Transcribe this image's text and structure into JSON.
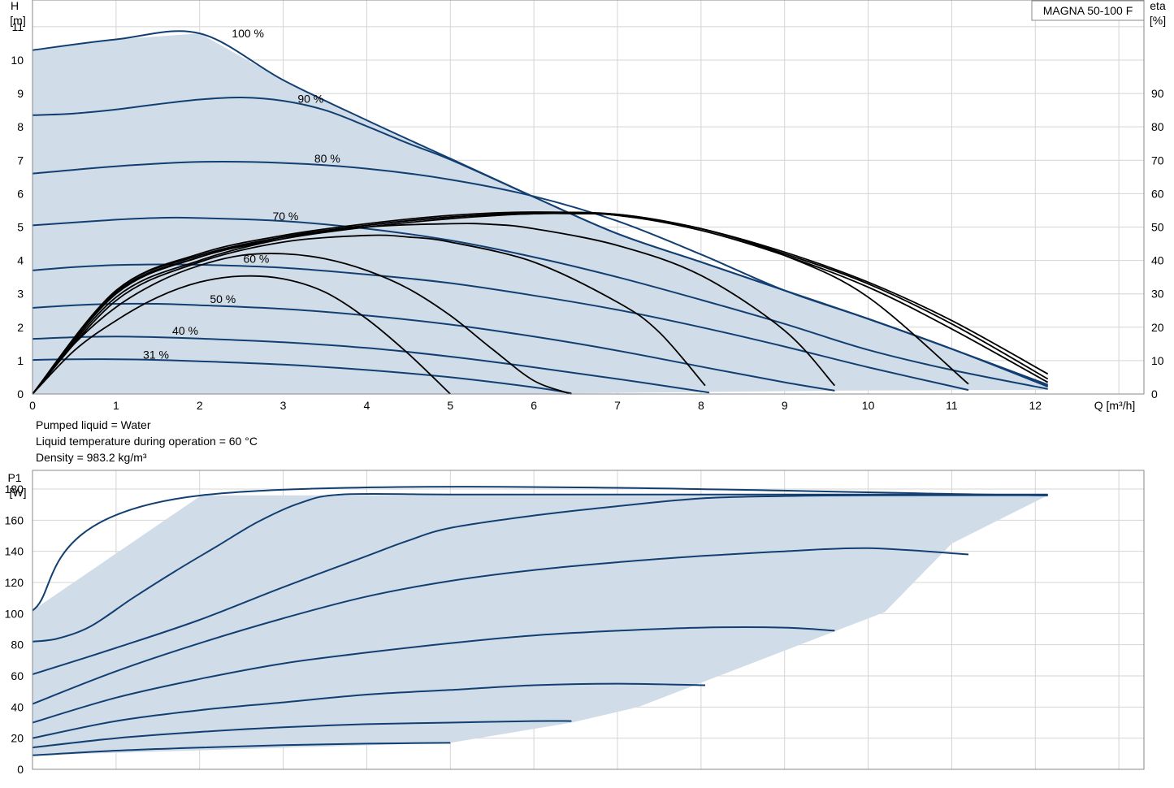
{
  "chart_data": [
    {
      "type": "line",
      "name": "head",
      "legend_label": "MAGNA 50-100 F",
      "x_label_line1": "Q [m³/h]",
      "y_label_line1": "H",
      "y_label_line2": "[m]",
      "y2_label_line1": "eta",
      "y2_label_line2": "[%]",
      "xlim": [
        0,
        13.3
      ],
      "ylim": [
        0,
        11.8
      ],
      "y2lim": [
        0,
        118
      ],
      "x_ticks": [
        0,
        1,
        2,
        3,
        4,
        5,
        6,
        7,
        8,
        9,
        10,
        11,
        12
      ],
      "y_ticks": [
        0,
        1,
        2,
        3,
        4,
        5,
        6,
        7,
        8,
        9,
        10,
        11
      ],
      "y2_ticks": [
        0,
        10,
        20,
        30,
        40,
        50,
        60,
        70,
        80,
        90
      ],
      "grid": true,
      "area_color": "#d0dce8",
      "curve_color": "#123f72",
      "eta_color": "#000000",
      "area": [
        [
          0,
          10.3
        ],
        [
          1,
          10.62
        ],
        [
          2,
          10.8
        ],
        [
          3,
          9.4
        ],
        [
          4,
          8.2
        ],
        [
          5,
          7.05
        ],
        [
          6,
          5.9
        ],
        [
          7,
          4.8
        ],
        [
          8,
          3.95
        ],
        [
          9,
          3.1
        ],
        [
          10,
          2.25
        ],
        [
          11,
          1.35
        ],
        [
          12.15,
          0.28
        ],
        [
          12.15,
          0.12
        ],
        [
          11.2,
          0.12
        ],
        [
          9.6,
          0.1
        ],
        [
          8.05,
          0.06
        ],
        [
          6.45,
          0.02
        ],
        [
          4.95,
          0
        ],
        [
          0,
          0
        ]
      ],
      "series": [
        {
          "name": "100 %",
          "label_x": 2.15,
          "label_y": 10.8,
          "x": [
            0,
            1,
            2,
            3,
            4,
            5,
            6,
            7,
            8,
            9,
            10,
            11,
            12.15
          ],
          "values": [
            10.3,
            10.62,
            10.8,
            9.4,
            8.2,
            7.05,
            5.9,
            4.8,
            3.95,
            3.1,
            2.25,
            1.35,
            0.28
          ]
        },
        {
          "name": "90 %",
          "label_x": 2.9,
          "label_y": 8.85,
          "x": [
            0,
            0.5,
            1,
            1.5,
            2,
            2.5,
            3,
            3.5,
            4,
            4.5,
            5,
            6,
            7,
            8,
            9,
            10,
            11,
            12.15
          ],
          "values": [
            8.35,
            8.4,
            8.52,
            8.68,
            8.82,
            8.88,
            8.78,
            8.5,
            8.02,
            7.5,
            7.02,
            5.9,
            4.8,
            3.95,
            3.1,
            2.25,
            1.35,
            0.25
          ]
        },
        {
          "name": "80 %",
          "label_x": 3.1,
          "label_y": 7.05,
          "x": [
            0,
            1,
            2,
            3,
            4,
            5,
            6,
            7,
            8,
            9,
            10,
            11,
            12.15
          ],
          "values": [
            6.6,
            6.82,
            6.95,
            6.92,
            6.75,
            6.42,
            5.92,
            5.18,
            4.18,
            3.1,
            2.25,
            1.35,
            0.22
          ]
        },
        {
          "name": "70 %",
          "label_x": 2.6,
          "label_y": 5.33,
          "x": [
            0,
            1,
            1.6,
            2,
            3,
            4,
            5,
            6,
            7,
            8,
            9,
            10,
            11,
            12.15
          ],
          "values": [
            5.05,
            5.22,
            5.28,
            5.27,
            5.18,
            4.95,
            4.6,
            4.1,
            3.5,
            2.82,
            2.1,
            1.32,
            0.72,
            0.15
          ]
        },
        {
          "name": "60 %",
          "label_x": 2.25,
          "label_y": 4.05,
          "x": [
            0,
            0.5,
            1,
            1.5,
            2,
            3,
            4,
            5,
            6,
            7,
            8,
            9,
            10,
            11.2
          ],
          "values": [
            3.7,
            3.8,
            3.86,
            3.88,
            3.87,
            3.78,
            3.58,
            3.32,
            2.95,
            2.52,
            2.0,
            1.42,
            0.8,
            0.12
          ]
        },
        {
          "name": "50 %",
          "label_x": 1.85,
          "label_y": 2.85,
          "x": [
            0,
            0.5,
            1,
            1.5,
            2,
            3,
            4,
            5,
            6,
            7,
            8,
            9,
            9.6
          ],
          "values": [
            2.58,
            2.66,
            2.7,
            2.7,
            2.66,
            2.55,
            2.35,
            2.08,
            1.72,
            1.3,
            0.82,
            0.35,
            0.1
          ]
        },
        {
          "name": "40 %",
          "label_x": 1.4,
          "label_y": 1.9,
          "x": [
            0,
            0.5,
            1,
            1.5,
            2,
            3,
            4,
            5,
            6,
            7,
            8,
            8.05
          ],
          "values": [
            1.65,
            1.7,
            1.72,
            1.7,
            1.66,
            1.55,
            1.38,
            1.12,
            0.8,
            0.45,
            0.08,
            0.06
          ]
        },
        {
          "name": "31 %",
          "label_x": 1.05,
          "label_y": 1.18,
          "x": [
            0,
            0.5,
            1,
            1.5,
            2,
            3,
            4,
            5,
            6,
            6.45
          ],
          "values": [
            1.02,
            1.04,
            1.04,
            1.02,
            0.98,
            0.88,
            0.72,
            0.5,
            0.2,
            0.02
          ]
        }
      ],
      "eta_series": [
        {
          "x": [
            0,
            0.5,
            1,
            1.5,
            2,
            2.5,
            3,
            3.5,
            4,
            4.5,
            5
          ],
          "values": [
            0,
            13,
            22,
            29,
            33.5,
            35.3,
            34.5,
            30.5,
            22.5,
            12,
            0
          ]
        },
        {
          "x": [
            0,
            0.5,
            1,
            1.5,
            2,
            2.5,
            3,
            3.5,
            4,
            4.5,
            5,
            5.5,
            6,
            6.45
          ],
          "values": [
            0,
            15,
            26,
            33.5,
            38.5,
            41.5,
            42,
            40.5,
            37,
            31.5,
            23.5,
            13.5,
            4,
            0
          ]
        },
        {
          "x": [
            0,
            1,
            2,
            3,
            4,
            4.5,
            5,
            6,
            7,
            7.5,
            8.05
          ],
          "values": [
            0,
            28,
            39.5,
            45.5,
            47.5,
            47,
            45.5,
            39.5,
            27.5,
            18.5,
            2.5
          ]
        },
        {
          "x": [
            0,
            1,
            2,
            3,
            4,
            5,
            5.5,
            6,
            7,
            8,
            9,
            9.6
          ],
          "values": [
            0,
            29,
            40,
            46.5,
            50,
            51,
            50.8,
            49.5,
            44.5,
            35.5,
            19,
            2.5
          ]
        },
        {
          "x": [
            0,
            1,
            2,
            3,
            4,
            5,
            6,
            6.5,
            7,
            8,
            9,
            10,
            11.2
          ],
          "values": [
            0,
            30,
            41,
            47,
            50.5,
            53,
            54,
            54,
            53.5,
            49.5,
            41.5,
            29,
            3
          ]
        },
        {
          "x": [
            0,
            1,
            2,
            3,
            4,
            5,
            6,
            7,
            8,
            9,
            10,
            11,
            12.15
          ],
          "values": [
            0,
            31,
            42,
            47.5,
            51,
            53.5,
            54.5,
            53.5,
            49,
            41.5,
            32,
            19.5,
            3.5
          ]
        },
        {
          "x": [
            0,
            1,
            2,
            3,
            4,
            5,
            6,
            7,
            8,
            9,
            10,
            11,
            12.15
          ],
          "values": [
            0,
            31,
            41.5,
            47,
            50.5,
            53,
            54.3,
            53.8,
            49.5,
            42,
            33,
            21,
            4.5
          ]
        },
        {
          "x": [
            0,
            1,
            2,
            3,
            4,
            5,
            6,
            7,
            8,
            9,
            10,
            11,
            12.15
          ],
          "values": [
            0,
            30.5,
            41,
            46.5,
            50,
            52.5,
            54,
            53.8,
            49.5,
            42.5,
            33.5,
            22,
            6
          ]
        }
      ]
    },
    {
      "type": "line",
      "name": "power",
      "y_label_line1": "P1",
      "y_label_line2": "[W]",
      "xlim": [
        0,
        13.3
      ],
      "ylim": [
        0,
        192
      ],
      "x_ticks": [
        0,
        1,
        2,
        3,
        4,
        5,
        6,
        7,
        8,
        9,
        10,
        11,
        12,
        13
      ],
      "y_ticks": [
        0,
        20,
        40,
        60,
        80,
        100,
        120,
        140,
        160,
        180
      ],
      "grid": true,
      "area_color": "#d0dce8",
      "curve_color": "#123f72",
      "area": [
        [
          0,
          102
        ],
        [
          2.02,
          176
        ],
        [
          12.15,
          176
        ],
        [
          11,
          145
        ],
        [
          10.2,
          101
        ],
        [
          8.6,
          68
        ],
        [
          7.25,
          40
        ],
        [
          6.45,
          30
        ],
        [
          5,
          17
        ],
        [
          0,
          9
        ],
        [
          0,
          102
        ]
      ],
      "series": [
        {
          "name": "100 %",
          "x": [
            0,
            2.02,
            12.15
          ],
          "values": [
            102,
            176,
            176
          ]
        },
        {
          "name": "90 %",
          "x": [
            0,
            0.3,
            0.7,
            1.2,
            1.7,
            2.2,
            2.7,
            3.2,
            3.7,
            5,
            7,
            9,
            12.15
          ],
          "values": [
            82,
            84,
            92,
            110,
            127,
            143,
            159,
            171,
            176.5,
            176.5,
            176.5,
            176.5,
            176.5
          ]
        },
        {
          "name": "80 %",
          "x": [
            0,
            1,
            2,
            3,
            4,
            4.5,
            5,
            6,
            7,
            8,
            9,
            10,
            12.15
          ],
          "values": [
            61,
            78,
            96,
            117,
            137,
            147,
            155,
            163,
            169,
            174,
            175.5,
            176,
            176
          ]
        },
        {
          "name": "70 %",
          "x": [
            0,
            1,
            2,
            3,
            4,
            5,
            6,
            7,
            8,
            9,
            10,
            11.2
          ],
          "values": [
            42,
            63,
            81,
            97,
            111,
            121,
            128,
            133,
            137,
            140,
            142,
            138
          ]
        },
        {
          "name": "60 %",
          "x": [
            0,
            1,
            2,
            3,
            4,
            5,
            6,
            7,
            8,
            9,
            9.6
          ],
          "values": [
            30,
            46,
            58,
            68,
            75,
            81,
            86,
            89,
            91,
            91,
            89
          ]
        },
        {
          "name": "50 %",
          "x": [
            0,
            1,
            2,
            3,
            4,
            5,
            6,
            7,
            8.05
          ],
          "values": [
            20,
            31,
            38,
            43,
            48,
            51,
            54,
            55,
            54
          ]
        },
        {
          "name": "40 %",
          "x": [
            0,
            1,
            2,
            3,
            4,
            5,
            6,
            6.45
          ],
          "values": [
            14,
            20,
            24,
            27,
            29,
            30,
            31,
            31
          ]
        },
        {
          "name": "31 %",
          "x": [
            0,
            1,
            2,
            3,
            4,
            5
          ],
          "values": [
            9,
            12,
            14,
            15.5,
            16.5,
            17
          ]
        }
      ]
    }
  ],
  "notes": {
    "line1": "Pumped liquid = Water",
    "line2": "Liquid temperature during operation = 60 °C",
    "line3": "Density = 983.2 kg/m³"
  }
}
